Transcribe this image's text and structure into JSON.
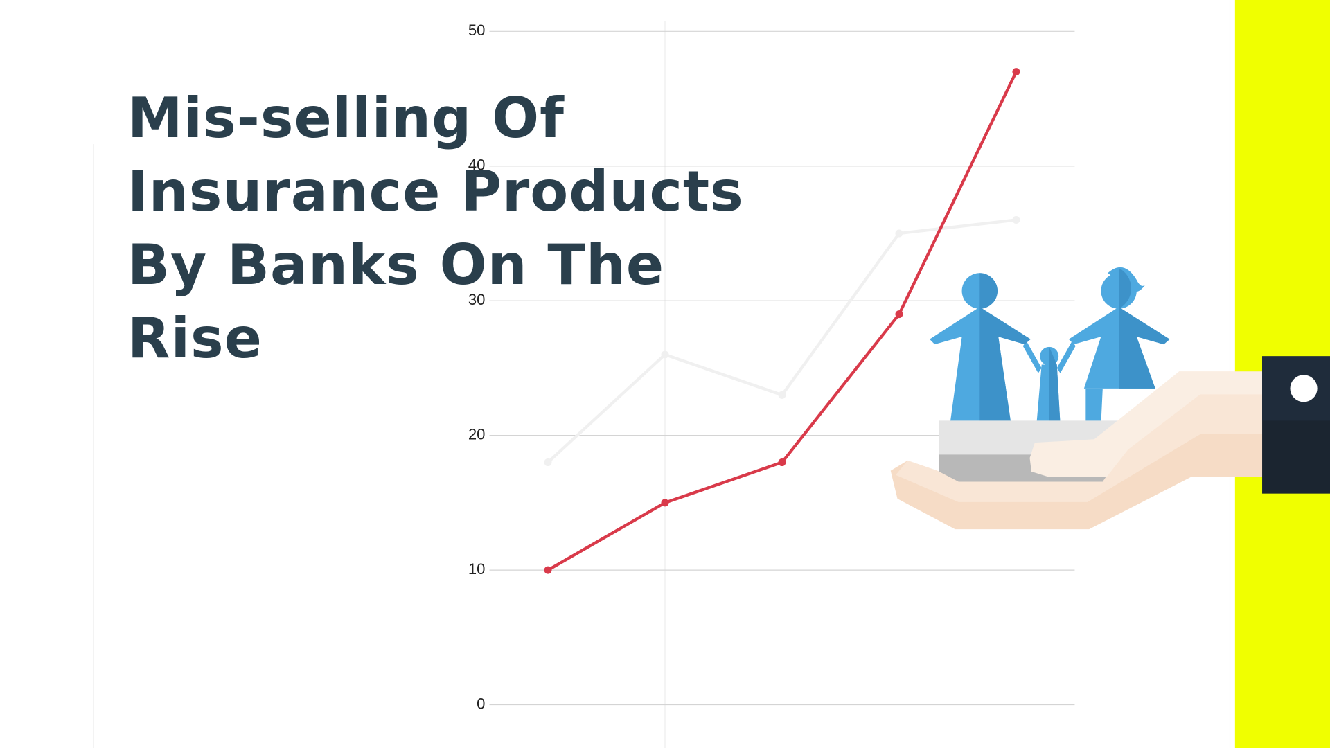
{
  "chart_data": {
    "type": "line",
    "title": "Mis-selling Of Insurance Products By Banks On The Rise",
    "categories": [
      null,
      null,
      null,
      null,
      null
    ],
    "series": [
      {
        "color": "#f0f0f0",
        "values": [
          18,
          26,
          23,
          35,
          36
        ]
      },
      {
        "color": "#d93a4a",
        "values": [
          10,
          15,
          18,
          29,
          47
        ]
      }
    ],
    "ylim": [
      0,
      50
    ],
    "yticks": [
      0,
      10,
      20,
      30,
      40,
      50
    ],
    "grid": true
  }
}
